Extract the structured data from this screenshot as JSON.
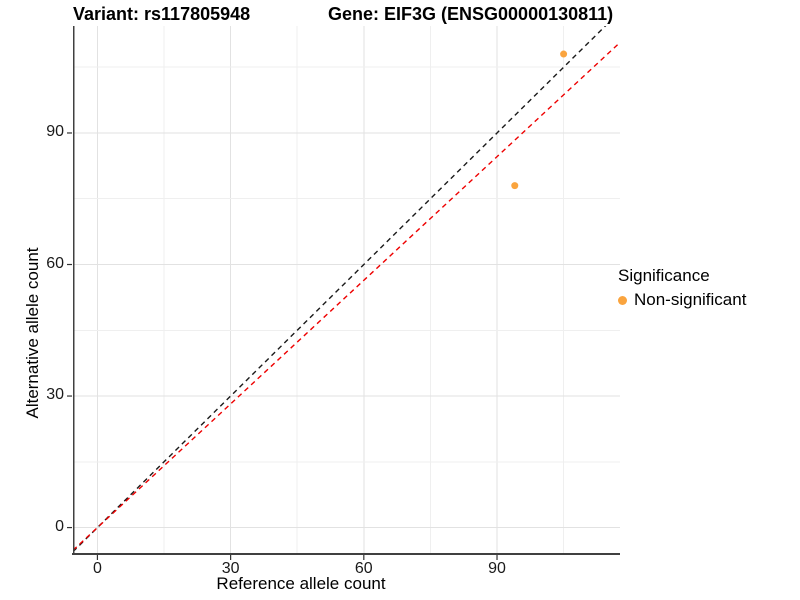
{
  "titles": {
    "variant": "Variant: rs117805948",
    "gene": "Gene: EIF3G (ENSG00000130811)"
  },
  "axes": {
    "x": {
      "label": "Reference allele count"
    },
    "y": {
      "label": "Alternative allele count"
    }
  },
  "legend": {
    "title": "Significance",
    "items": [
      {
        "label": "Non-significant",
        "color": "#FAA43E"
      }
    ]
  },
  "chart_data": {
    "type": "scatter",
    "title": "Variant: rs117805948 — Gene: EIF3G (ENSG00000130811)",
    "xlabel": "Reference allele count",
    "ylabel": "Alternative allele count",
    "xlim": [
      -5.5,
      117.7
    ],
    "ylim": [
      -5.8,
      114.4
    ],
    "x_major_ticks": [
      0,
      30,
      60,
      90
    ],
    "y_major_ticks": [
      0,
      30,
      60,
      90
    ],
    "minor_grid_step": 15,
    "major_grid_step": 30,
    "grid": true,
    "colors": {
      "major_grid": "#E2E2E2",
      "minor_grid": "#EFEFEF",
      "axis_line": "#404040",
      "tick_mark": "#333333"
    },
    "series": [
      {
        "name": "Non-significant",
        "color": "#FAA43E",
        "points": [
          {
            "x": 94,
            "y": 78
          },
          {
            "x": 105,
            "y": 108
          }
        ]
      }
    ],
    "reference_lines": [
      {
        "name": "identity-line",
        "slope": 1.0,
        "intercept": 0,
        "color": "#1A1A1A",
        "style": "dashed"
      },
      {
        "name": "fitted-ratio-line",
        "slope": 0.94,
        "intercept": 0,
        "color": "#EE0000",
        "style": "dashed"
      }
    ],
    "legend": {
      "title": "Significance",
      "position": "right"
    }
  }
}
